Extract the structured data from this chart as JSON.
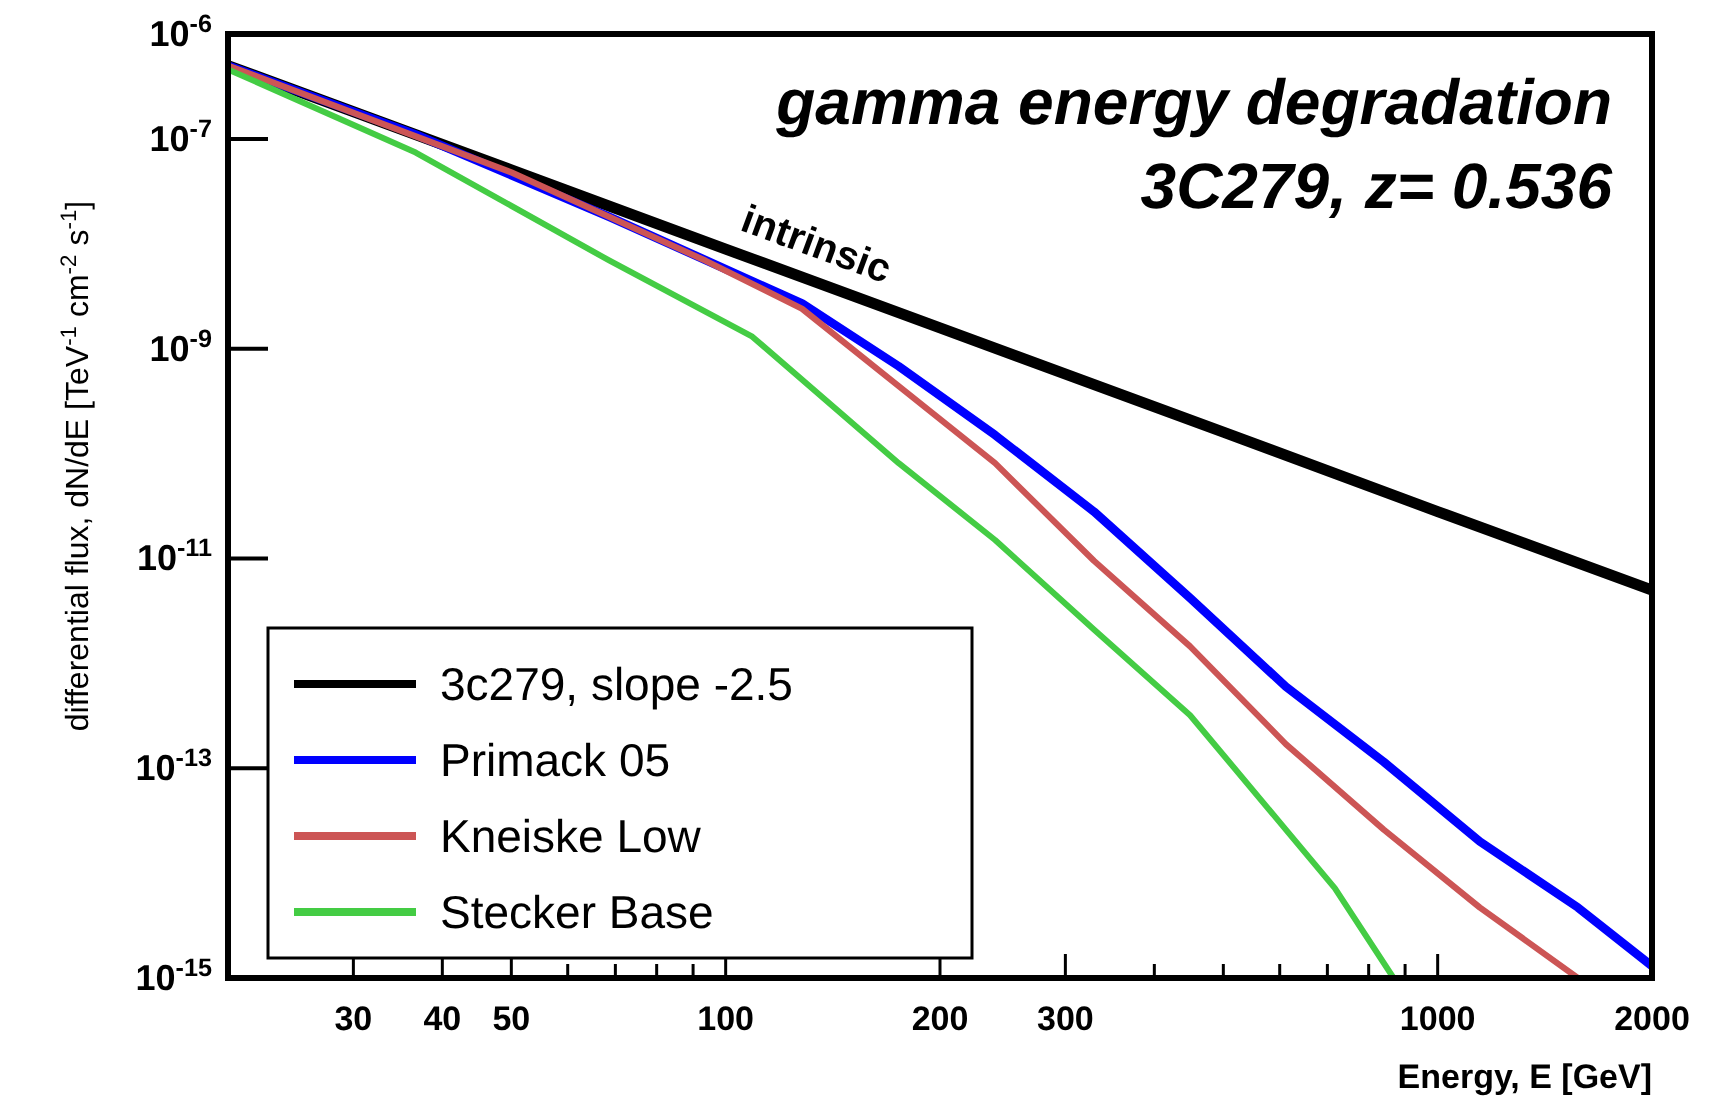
{
  "chart_data": {
    "type": "line",
    "xlabel": "Energy, E [GeV]",
    "ylabel": "differential flux, dN/dE [TeV$^{-1}$ cm$^{-2}$ s$^{-1}$]",
    "log": "xy",
    "xlim": [
      20,
      2000
    ],
    "ylim": [
      1e-15,
      1e-06
    ],
    "xticks": [
      30,
      40,
      50,
      {
        "value": 60,
        "label": null
      },
      {
        "value": 70,
        "label": null
      },
      {
        "value": 80,
        "label": null
      },
      {
        "value": 90,
        "label": null
      },
      100,
      200,
      300,
      {
        "value": 400,
        "label": null
      },
      {
        "value": 500,
        "label": null
      },
      {
        "value": 600,
        "label": null
      },
      {
        "value": 700,
        "label": null
      },
      {
        "value": 800,
        "label": null
      },
      {
        "value": 900,
        "label": null
      },
      1000,
      2000
    ],
    "yticks": [
      {
        "value": 1e-06,
        "label": "10$^{-6}$"
      },
      {
        "value": 1e-07,
        "label": "10$^{-7}$"
      },
      {
        "value": 1e-09,
        "label": "10$^{-9}$"
      },
      {
        "value": 1e-11,
        "label": "10$^{-11}$"
      },
      {
        "value": 1e-13,
        "label": "10$^{-13}$"
      },
      {
        "value": 1e-15,
        "label": "10$^{-15}$"
      }
    ],
    "grid": false,
    "legend": "bottom left",
    "line_style": "solid",
    "marker": "none",
    "annotations": [
      "gamma energy degradation",
      "3C279, z= 0.536",
      "intrinsic"
    ],
    "series": [
      {
        "name": "3c279, slope -2.5",
        "color": "#000000",
        "x": [
          20,
          50,
          100,
          200,
          500,
          1000,
          2000
        ],
        "values": [
          5e-07,
          5.06e-08,
          8.9e-09,
          1.58e-09,
          1.6e-10,
          2.8e-11,
          5e-12
        ]
      },
      {
        "name": "Primack 05",
        "color": "#0000ff",
        "x": [
          20,
          36.7,
          68.7,
          128,
          175,
          239,
          329,
          449,
          612,
          840,
          1146,
          1574,
          2000
        ],
        "values": [
          5e-07,
          1.1e-07,
          1.8e-08,
          2.7e-09,
          6.8e-10,
          1.5e-10,
          2.8e-11,
          4.2e-12,
          6e-13,
          1.15e-13,
          2e-14,
          4.7e-15,
          1.3e-15
        ]
      },
      {
        "name": "Kneiske Low",
        "color": "#cc5555",
        "x": [
          20,
          50,
          93.7,
          128,
          175,
          239,
          329,
          449,
          612,
          840,
          1146,
          1574
        ],
        "values": [
          5e-07,
          4.8e-08,
          6.9e-09,
          2.4e-09,
          4.4e-10,
          8.1e-11,
          9.5e-12,
          1.45e-12,
          1.7e-13,
          2.6e-14,
          4.7e-15,
          1e-15
        ]
      },
      {
        "name": "Stecker Base",
        "color": "#44cc44",
        "x": [
          20,
          36.7,
          68.7,
          109,
          175,
          239,
          329,
          449,
          612,
          717,
          867
        ],
        "values": [
          4.6e-07,
          7.4e-08,
          6.9e-09,
          1.3e-09,
          8.1e-11,
          1.5e-11,
          2.1e-12,
          3.2e-13,
          2.6e-14,
          7.2e-15,
          1e-15
        ]
      }
    ]
  }
}
